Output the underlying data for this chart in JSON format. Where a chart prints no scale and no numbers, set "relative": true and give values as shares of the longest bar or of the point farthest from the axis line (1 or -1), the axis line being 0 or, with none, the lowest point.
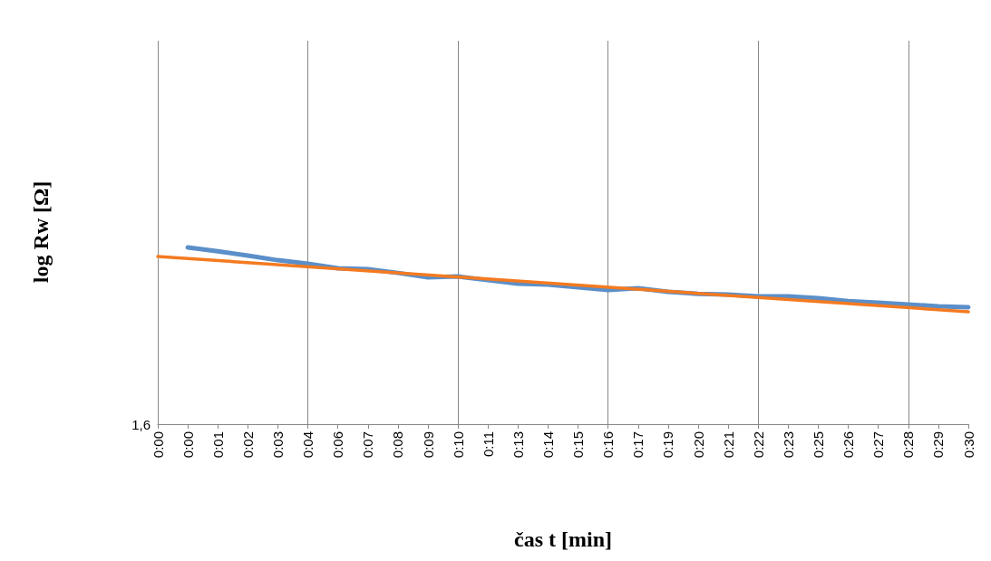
{
  "chart_data": {
    "type": "line",
    "relative": true,
    "ylabel": "log Rw [Ω]",
    "xlabel": "čas t [min]",
    "categories": [
      "0:00",
      "0:00",
      "0:01",
      "0:02",
      "0:03",
      "0:04",
      "0:06",
      "0:07",
      "0:08",
      "0:09",
      "0:10",
      "0:11",
      "0:13",
      "0:14",
      "0:15",
      "0:16",
      "0:17",
      "0:19",
      "0:20",
      "0:21",
      "0:22",
      "0:23",
      "0:25",
      "0:26",
      "0:27",
      "0:28",
      "0:29",
      "0:30"
    ],
    "series": [
      {
        "color": "#5b8fc9",
        "values": [
          null,
          1,
          0.979,
          0.954,
          0.928,
          0.908,
          0.882,
          0.877,
          0.856,
          0.831,
          0.836,
          0.815,
          0.795,
          0.79,
          0.774,
          0.759,
          0.769,
          0.749,
          0.738,
          0.733,
          0.723,
          0.723,
          0.713,
          0.697,
          0.687,
          0.677,
          0.667,
          0.662
        ]
      },
      {
        "color": "#f47a20",
        "values": [
          0.949,
          null,
          null,
          null,
          null,
          null,
          null,
          null,
          null,
          null,
          null,
          null,
          null,
          null,
          null,
          null,
          null,
          null,
          null,
          null,
          null,
          null,
          null,
          null,
          null,
          null,
          null,
          0.636
        ]
      }
    ],
    "annotations": [
      "1,6"
    ],
    "grid": "x",
    "marker": "none"
  }
}
